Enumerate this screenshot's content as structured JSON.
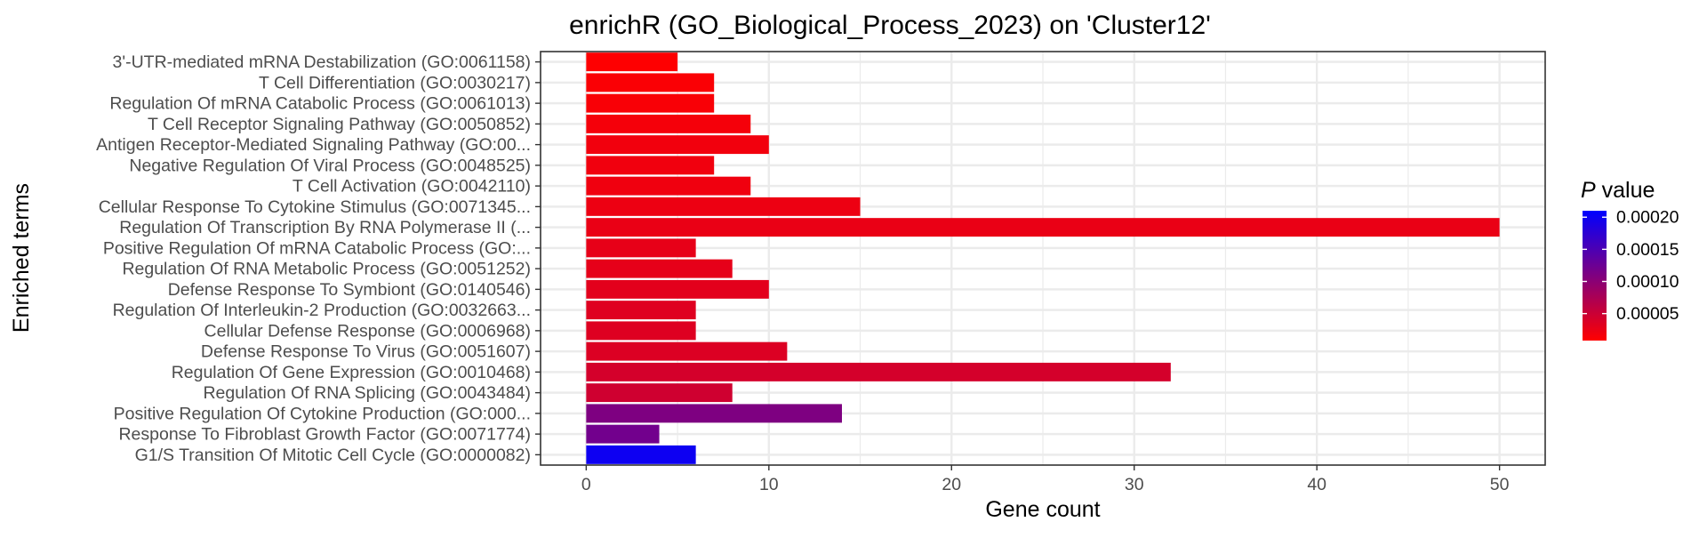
{
  "chart_data": {
    "type": "bar",
    "orientation": "horizontal",
    "title": "enrichR (GO_Biological_Process_2023) on 'Cluster12'",
    "xlabel": "Gene count",
    "ylabel": "Enriched terms",
    "xlim": [
      -2.5,
      52.5
    ],
    "xticks": [
      0,
      10,
      20,
      30,
      40,
      50
    ],
    "grid": true,
    "legend_position": "right",
    "legend": {
      "title_italic": "P",
      "title_rest": " value",
      "ticks": [
        {
          "value": 0.0002,
          "label": "0.00020"
        },
        {
          "value": 0.00015,
          "label": "0.00015"
        },
        {
          "value": 0.0001,
          "label": "0.00010"
        },
        {
          "value": 5e-05,
          "label": "0.00005"
        }
      ],
      "range": [
        8e-06,
        0.00021
      ],
      "low_color": "#FF0000",
      "high_color": "#0000FF"
    },
    "categories": [
      "3'-UTR-mediated mRNA Destabilization (GO:0061158)",
      "T Cell Differentiation (GO:0030217)",
      "Regulation Of mRNA Catabolic Process (GO:0061013)",
      "T Cell Receptor Signaling Pathway (GO:0050852)",
      "Antigen Receptor-Mediated Signaling Pathway (GO:00...",
      "Negative Regulation Of Viral Process (GO:0048525)",
      "T Cell Activation (GO:0042110)",
      "Cellular Response To Cytokine Stimulus (GO:0071345...",
      "Regulation Of Transcription By RNA Polymerase II (...",
      "Positive Regulation Of mRNA Catabolic Process (GO:...",
      "Regulation Of RNA Metabolic Process (GO:0051252)",
      "Defense Response To Symbiont (GO:0140546)",
      "Regulation Of Interleukin-2 Production (GO:0032663...",
      "Cellular Defense Response (GO:0006968)",
      "Defense Response To Virus (GO:0051607)",
      "Regulation Of Gene Expression (GO:0010468)",
      "Regulation Of RNA Splicing (GO:0043484)",
      "Positive Regulation Of Cytokine Production (GO:000...",
      "Response To Fibroblast Growth Factor (GO:0071774)",
      "G1/S Transition Of Mitotic Cell Cycle (GO:0000082)"
    ],
    "values": [
      5,
      7,
      7,
      9,
      10,
      7,
      9,
      15,
      50,
      6,
      8,
      10,
      6,
      6,
      11,
      32,
      8,
      14,
      4,
      6
    ],
    "p_values": [
      9e-06,
      1.2e-05,
      1.3e-05,
      1.6e-05,
      1.8e-05,
      1.9e-05,
      2e-05,
      2.2e-05,
      2.5e-05,
      2.7e-05,
      2.8e-05,
      3e-05,
      3.3e-05,
      3.4e-05,
      3.6e-05,
      4.2e-05,
      4.6e-05,
      0.00011,
      0.00012,
      0.0002
    ]
  }
}
